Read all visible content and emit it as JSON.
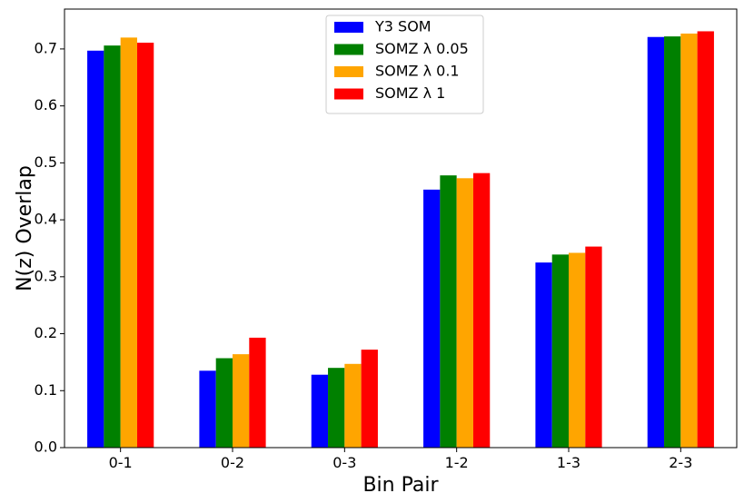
{
  "chart_data": {
    "type": "bar",
    "title": "",
    "xlabel": "Bin Pair",
    "ylabel": "N(z) Overlap",
    "categories": [
      "0-1",
      "0-2",
      "0-3",
      "1-2",
      "1-3",
      "2-3"
    ],
    "ylim": [
      0,
      0.77
    ],
    "yticks": [
      "0.0",
      "0.1",
      "0.2",
      "0.3",
      "0.4",
      "0.5",
      "0.6",
      "0.7"
    ],
    "grid": false,
    "legend_position": "top-center",
    "series": [
      {
        "name": "Y3 SOM",
        "color": "#0000ff",
        "values": [
          0.697,
          0.135,
          0.128,
          0.453,
          0.325,
          0.721
        ]
      },
      {
        "name": "SOMZ λ 0.05",
        "color": "#008000",
        "values": [
          0.706,
          0.157,
          0.14,
          0.478,
          0.339,
          0.722
        ]
      },
      {
        "name": "SOMZ λ 0.1",
        "color": "#ffa500",
        "values": [
          0.72,
          0.164,
          0.147,
          0.473,
          0.342,
          0.727
        ]
      },
      {
        "name": "SOMZ λ 1",
        "color": "#ff0000",
        "values": [
          0.711,
          0.193,
          0.172,
          0.482,
          0.353,
          0.731
        ]
      }
    ]
  }
}
